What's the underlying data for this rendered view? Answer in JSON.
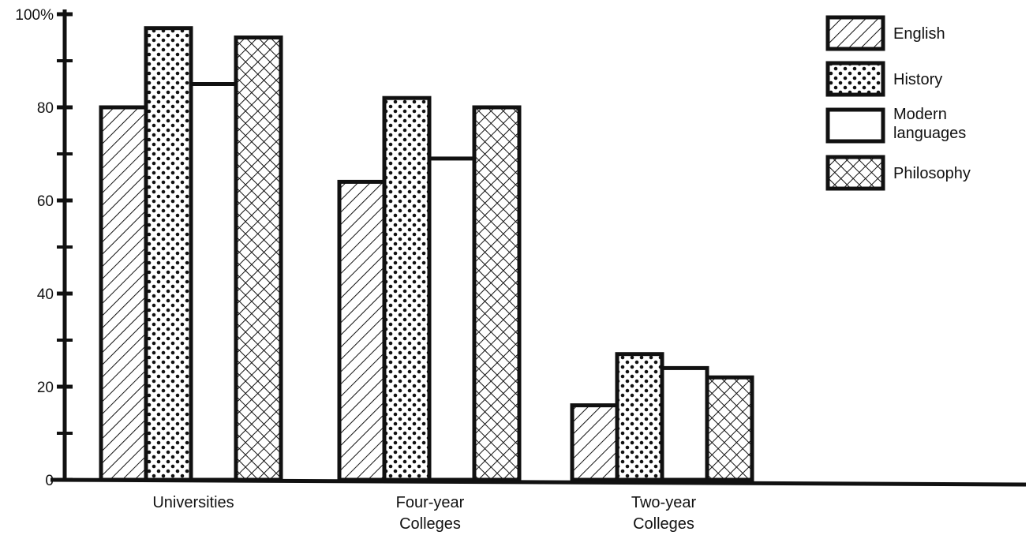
{
  "chart_data": {
    "type": "bar",
    "title": "",
    "xlabel": "",
    "ylabel": "",
    "ylim": [
      0,
      100
    ],
    "y_ticks": [
      0,
      20,
      40,
      60,
      80,
      100
    ],
    "y_tick_labels": [
      "0",
      "20",
      "40",
      "60",
      "80",
      "100%"
    ],
    "categories": [
      {
        "lines": [
          "Universities"
        ]
      },
      {
        "lines": [
          "Four-year",
          "Colleges"
        ]
      },
      {
        "lines": [
          "Two-year",
          "Colleges"
        ]
      }
    ],
    "series": [
      {
        "name": "English",
        "pattern": "diagonal-hatch",
        "values": [
          80,
          64,
          16
        ]
      },
      {
        "name": "History",
        "pattern": "dots",
        "values": [
          97,
          82,
          27
        ]
      },
      {
        "name": "Modern languages",
        "legend_lines": [
          "Modern",
          "languages"
        ],
        "pattern": "plain-white",
        "values": [
          85,
          69,
          24
        ]
      },
      {
        "name": "Philosophy",
        "pattern": "crosshatch",
        "values": [
          95,
          80,
          22
        ]
      }
    ],
    "legend_position": "top-right",
    "grid": false,
    "colors": {
      "ink": "#111111",
      "background": "#ffffff"
    }
  }
}
